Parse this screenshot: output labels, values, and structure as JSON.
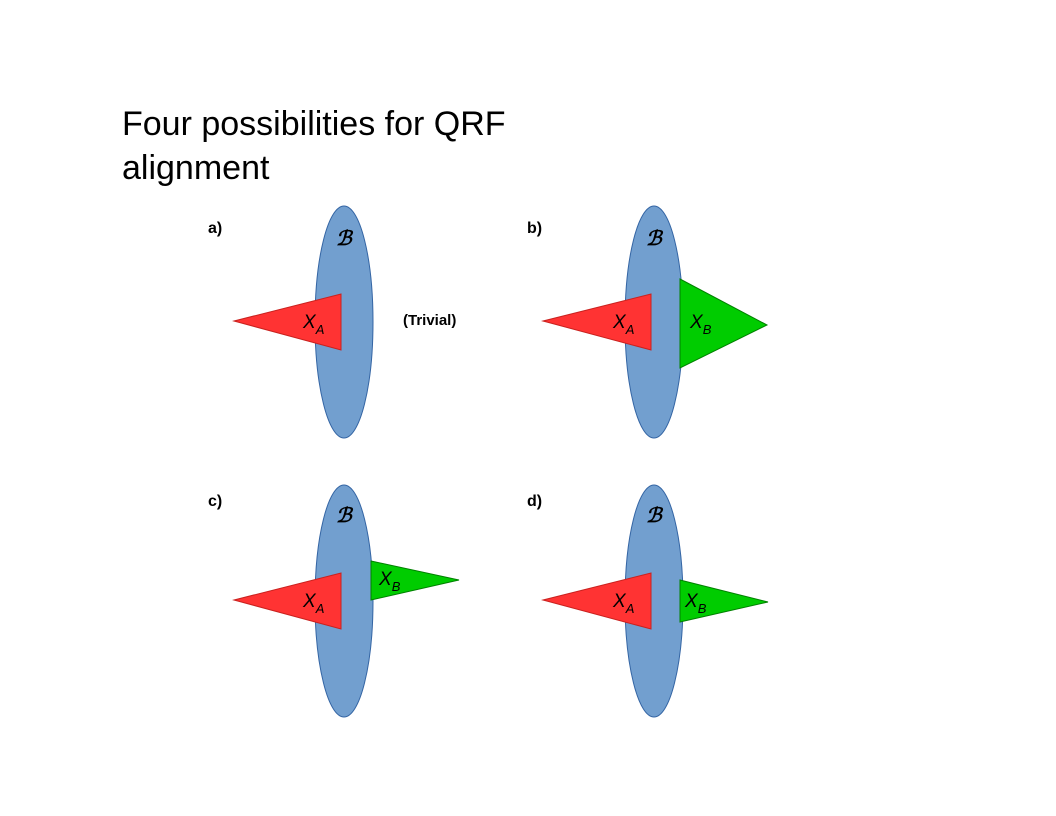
{
  "title": {
    "line1": "Four possibilities  for QRF",
    "line2": "alignment"
  },
  "panels": [
    {
      "label": "a)",
      "b_symbol": "ℬ",
      "xa": "X",
      "xa_sub": "A",
      "note": "(Trivial)"
    },
    {
      "label": "b)",
      "b_symbol": "ℬ",
      "xa": "X",
      "xa_sub": "A",
      "xb": "X",
      "xb_sub": "B"
    },
    {
      "label": "c)",
      "b_symbol": "ℬ",
      "xa": "X",
      "xa_sub": "A",
      "xb": "X",
      "xb_sub": "B"
    },
    {
      "label": "d)",
      "b_symbol": "ℬ",
      "xa": "X",
      "xa_sub": "A",
      "xb": "X",
      "xb_sub": "B"
    }
  ],
  "colors": {
    "ellipse_fill": "#729fcf",
    "ellipse_stroke": "#3465a4",
    "red_fill": "#ff3333",
    "red_stroke": "#c9211e",
    "green_fill": "#00cc00",
    "green_stroke": "#008000"
  }
}
